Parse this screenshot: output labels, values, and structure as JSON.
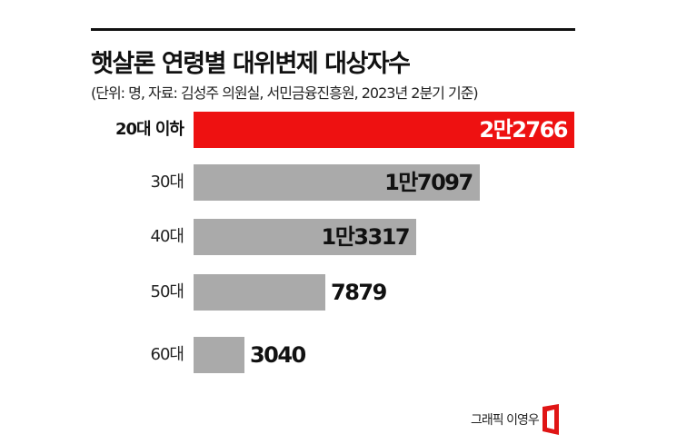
{
  "chart_data": {
    "type": "bar",
    "orientation": "horizontal",
    "title": "햇살론 연령별 대위변제 대상자수",
    "subtitle": "(단위: 명, 자료: 김성주 의원실, 서민금융진흥원, 2023년 2분기 기준)",
    "categories": [
      "20대 이하",
      "30대",
      "40대",
      "50대",
      "60대"
    ],
    "values": [
      22766,
      17097,
      13317,
      7879,
      3040
    ],
    "value_labels": [
      "2만2766",
      "1만7097",
      "1만3317",
      "7879",
      "3040"
    ],
    "highlight_index": 0,
    "colors": {
      "highlight": "#ee1111",
      "default": "#aaaaaa"
    },
    "grid": false
  },
  "credit": "그래픽 이영우",
  "logo": {
    "icon": "red-trapezoid-logo-icon",
    "color": "#e01515"
  }
}
